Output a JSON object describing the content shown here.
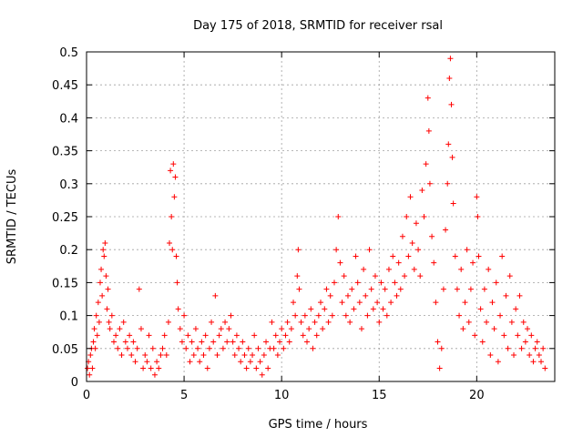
{
  "chart_data": {
    "type": "scatter",
    "title": "Day 175 of 2018, SRMTID for receiver rsal",
    "xlabel": "GPS time / hours",
    "ylabel": "SRMTID / TECUs",
    "xlim": [
      0,
      24
    ],
    "ylim": [
      0,
      0.5
    ],
    "grid": true,
    "x_ticks": [
      0,
      5,
      10,
      15,
      20
    ],
    "x_tick_labels": [
      "0",
      "5",
      "10",
      "15",
      "20"
    ],
    "y_ticks": [
      0,
      0.05,
      0.1,
      0.15,
      0.2,
      0.25,
      0.3,
      0.35,
      0.4,
      0.45,
      0.5
    ],
    "y_tick_labels": [
      "0",
      "0.05",
      "0.1",
      "0.15",
      "0.2",
      "0.25",
      "0.3",
      "0.35",
      "0.4",
      "0.45",
      "0.5"
    ],
    "marker": "+",
    "color": "#ff0000",
    "series": [
      {
        "name": "rsal",
        "points": [
          [
            0.05,
            0.02
          ],
          [
            0.1,
            0.03
          ],
          [
            0.15,
            0.01
          ],
          [
            0.2,
            0.04
          ],
          [
            0.25,
            0.05
          ],
          [
            0.3,
            0.02
          ],
          [
            0.35,
            0.06
          ],
          [
            0.4,
            0.08
          ],
          [
            0.45,
            0.05
          ],
          [
            0.5,
            0.1
          ],
          [
            0.55,
            0.07
          ],
          [
            0.6,
            0.12
          ],
          [
            0.65,
            0.09
          ],
          [
            0.7,
            0.15
          ],
          [
            0.75,
            0.17
          ],
          [
            0.8,
            0.13
          ],
          [
            0.85,
            0.2
          ],
          [
            0.9,
            0.19
          ],
          [
            0.95,
            0.21
          ],
          [
            1.0,
            0.16
          ],
          [
            1.05,
            0.11
          ],
          [
            1.1,
            0.14
          ],
          [
            1.15,
            0.09
          ],
          [
            1.2,
            0.08
          ],
          [
            1.3,
            0.1
          ],
          [
            1.4,
            0.06
          ],
          [
            1.5,
            0.07
          ],
          [
            1.6,
            0.05
          ],
          [
            1.7,
            0.08
          ],
          [
            1.8,
            0.04
          ],
          [
            1.9,
            0.09
          ],
          [
            2.0,
            0.06
          ],
          [
            2.1,
            0.05
          ],
          [
            2.2,
            0.07
          ],
          [
            2.3,
            0.04
          ],
          [
            2.4,
            0.06
          ],
          [
            2.5,
            0.03
          ],
          [
            2.6,
            0.05
          ],
          [
            2.7,
            0.14
          ],
          [
            2.8,
            0.08
          ],
          [
            2.9,
            0.02
          ],
          [
            3.0,
            0.04
          ],
          [
            3.1,
            0.03
          ],
          [
            3.2,
            0.07
          ],
          [
            3.3,
            0.02
          ],
          [
            3.4,
            0.05
          ],
          [
            3.5,
            0.01
          ],
          [
            3.6,
            0.03
          ],
          [
            3.7,
            0.02
          ],
          [
            3.8,
            0.04
          ],
          [
            3.9,
            0.05
          ],
          [
            4.0,
            0.07
          ],
          [
            4.1,
            0.04
          ],
          [
            4.2,
            0.09
          ],
          [
            4.25,
            0.21
          ],
          [
            4.3,
            0.32
          ],
          [
            4.35,
            0.25
          ],
          [
            4.4,
            0.2
          ],
          [
            4.45,
            0.33
          ],
          [
            4.5,
            0.28
          ],
          [
            4.55,
            0.31
          ],
          [
            4.6,
            0.19
          ],
          [
            4.65,
            0.15
          ],
          [
            4.7,
            0.11
          ],
          [
            4.8,
            0.08
          ],
          [
            4.9,
            0.06
          ],
          [
            5.0,
            0.1
          ],
          [
            5.1,
            0.05
          ],
          [
            5.2,
            0.07
          ],
          [
            5.3,
            0.03
          ],
          [
            5.4,
            0.06
          ],
          [
            5.5,
            0.04
          ],
          [
            5.6,
            0.08
          ],
          [
            5.7,
            0.05
          ],
          [
            5.8,
            0.03
          ],
          [
            5.9,
            0.06
          ],
          [
            6.0,
            0.04
          ],
          [
            6.1,
            0.07
          ],
          [
            6.2,
            0.02
          ],
          [
            6.3,
            0.05
          ],
          [
            6.4,
            0.09
          ],
          [
            6.5,
            0.06
          ],
          [
            6.6,
            0.13
          ],
          [
            6.7,
            0.04
          ],
          [
            6.8,
            0.07
          ],
          [
            6.9,
            0.08
          ],
          [
            7.0,
            0.05
          ],
          [
            7.1,
            0.09
          ],
          [
            7.2,
            0.06
          ],
          [
            7.3,
            0.08
          ],
          [
            7.4,
            0.1
          ],
          [
            7.5,
            0.06
          ],
          [
            7.6,
            0.04
          ],
          [
            7.7,
            0.07
          ],
          [
            7.8,
            0.05
          ],
          [
            7.9,
            0.03
          ],
          [
            8.0,
            0.06
          ],
          [
            8.1,
            0.04
          ],
          [
            8.2,
            0.02
          ],
          [
            8.3,
            0.05
          ],
          [
            8.4,
            0.03
          ],
          [
            8.5,
            0.04
          ],
          [
            8.6,
            0.07
          ],
          [
            8.7,
            0.02
          ],
          [
            8.8,
            0.05
          ],
          [
            8.9,
            0.03
          ],
          [
            9.0,
            0.01
          ],
          [
            9.1,
            0.04
          ],
          [
            9.2,
            0.06
          ],
          [
            9.3,
            0.02
          ],
          [
            9.4,
            0.05
          ],
          [
            9.5,
            0.09
          ],
          [
            9.6,
            0.05
          ],
          [
            9.7,
            0.07
          ],
          [
            9.8,
            0.04
          ],
          [
            9.9,
            0.06
          ],
          [
            10.0,
            0.08
          ],
          [
            10.1,
            0.05
          ],
          [
            10.2,
            0.07
          ],
          [
            10.3,
            0.09
          ],
          [
            10.4,
            0.06
          ],
          [
            10.5,
            0.08
          ],
          [
            10.6,
            0.12
          ],
          [
            10.7,
            0.1
          ],
          [
            10.8,
            0.16
          ],
          [
            10.85,
            0.2
          ],
          [
            10.9,
            0.14
          ],
          [
            11.0,
            0.09
          ],
          [
            11.1,
            0.07
          ],
          [
            11.2,
            0.1
          ],
          [
            11.3,
            0.06
          ],
          [
            11.4,
            0.08
          ],
          [
            11.5,
            0.11
          ],
          [
            11.6,
            0.05
          ],
          [
            11.7,
            0.09
          ],
          [
            11.8,
            0.07
          ],
          [
            11.9,
            0.1
          ],
          [
            12.0,
            0.12
          ],
          [
            12.1,
            0.08
          ],
          [
            12.2,
            0.11
          ],
          [
            12.3,
            0.14
          ],
          [
            12.4,
            0.09
          ],
          [
            12.5,
            0.13
          ],
          [
            12.6,
            0.1
          ],
          [
            12.7,
            0.15
          ],
          [
            12.8,
            0.2
          ],
          [
            12.9,
            0.25
          ],
          [
            13.0,
            0.18
          ],
          [
            13.1,
            0.12
          ],
          [
            13.2,
            0.16
          ],
          [
            13.3,
            0.1
          ],
          [
            13.4,
            0.13
          ],
          [
            13.5,
            0.09
          ],
          [
            13.6,
            0.14
          ],
          [
            13.7,
            0.11
          ],
          [
            13.8,
            0.19
          ],
          [
            13.9,
            0.15
          ],
          [
            14.0,
            0.12
          ],
          [
            14.1,
            0.08
          ],
          [
            14.2,
            0.17
          ],
          [
            14.3,
            0.13
          ],
          [
            14.4,
            0.1
          ],
          [
            14.5,
            0.2
          ],
          [
            14.6,
            0.14
          ],
          [
            14.7,
            0.11
          ],
          [
            14.8,
            0.16
          ],
          [
            14.9,
            0.12
          ],
          [
            15.0,
            0.09
          ],
          [
            15.1,
            0.15
          ],
          [
            15.2,
            0.11
          ],
          [
            15.3,
            0.14
          ],
          [
            15.4,
            0.1
          ],
          [
            15.5,
            0.17
          ],
          [
            15.6,
            0.12
          ],
          [
            15.7,
            0.19
          ],
          [
            15.8,
            0.15
          ],
          [
            15.9,
            0.13
          ],
          [
            16.0,
            0.18
          ],
          [
            16.1,
            0.14
          ],
          [
            16.2,
            0.22
          ],
          [
            16.3,
            0.16
          ],
          [
            16.4,
            0.25
          ],
          [
            16.5,
            0.19
          ],
          [
            16.6,
            0.28
          ],
          [
            16.7,
            0.21
          ],
          [
            16.8,
            0.17
          ],
          [
            16.9,
            0.24
          ],
          [
            17.0,
            0.2
          ],
          [
            17.1,
            0.16
          ],
          [
            17.2,
            0.29
          ],
          [
            17.3,
            0.25
          ],
          [
            17.4,
            0.33
          ],
          [
            17.5,
            0.43
          ],
          [
            17.55,
            0.38
          ],
          [
            17.6,
            0.3
          ],
          [
            17.7,
            0.22
          ],
          [
            17.8,
            0.18
          ],
          [
            17.9,
            0.12
          ],
          [
            18.0,
            0.06
          ],
          [
            18.1,
            0.02
          ],
          [
            18.2,
            0.05
          ],
          [
            18.3,
            0.14
          ],
          [
            18.4,
            0.23
          ],
          [
            18.5,
            0.3
          ],
          [
            18.55,
            0.36
          ],
          [
            18.6,
            0.46
          ],
          [
            18.65,
            0.49
          ],
          [
            18.7,
            0.42
          ],
          [
            18.75,
            0.34
          ],
          [
            18.8,
            0.27
          ],
          [
            18.9,
            0.19
          ],
          [
            19.0,
            0.14
          ],
          [
            19.1,
            0.1
          ],
          [
            19.2,
            0.17
          ],
          [
            19.3,
            0.08
          ],
          [
            19.4,
            0.12
          ],
          [
            19.5,
            0.2
          ],
          [
            19.6,
            0.09
          ],
          [
            19.7,
            0.14
          ],
          [
            19.8,
            0.18
          ],
          [
            19.9,
            0.07
          ],
          [
            20.0,
            0.28
          ],
          [
            20.05,
            0.25
          ],
          [
            20.1,
            0.19
          ],
          [
            20.2,
            0.11
          ],
          [
            20.3,
            0.06
          ],
          [
            20.4,
            0.14
          ],
          [
            20.5,
            0.09
          ],
          [
            20.6,
            0.17
          ],
          [
            20.7,
            0.04
          ],
          [
            20.8,
            0.12
          ],
          [
            20.9,
            0.08
          ],
          [
            21.0,
            0.15
          ],
          [
            21.1,
            0.03
          ],
          [
            21.2,
            0.1
          ],
          [
            21.3,
            0.19
          ],
          [
            21.4,
            0.07
          ],
          [
            21.5,
            0.13
          ],
          [
            21.6,
            0.05
          ],
          [
            21.7,
            0.16
          ],
          [
            21.8,
            0.09
          ],
          [
            21.9,
            0.04
          ],
          [
            22.0,
            0.11
          ],
          [
            22.1,
            0.07
          ],
          [
            22.2,
            0.13
          ],
          [
            22.3,
            0.05
          ],
          [
            22.4,
            0.09
          ],
          [
            22.5,
            0.06
          ],
          [
            22.6,
            0.08
          ],
          [
            22.7,
            0.04
          ],
          [
            22.8,
            0.07
          ],
          [
            22.9,
            0.03
          ],
          [
            23.0,
            0.05
          ],
          [
            23.1,
            0.06
          ],
          [
            23.2,
            0.04
          ],
          [
            23.3,
            0.03
          ],
          [
            23.4,
            0.05
          ],
          [
            23.5,
            0.02
          ]
        ]
      }
    ]
  }
}
